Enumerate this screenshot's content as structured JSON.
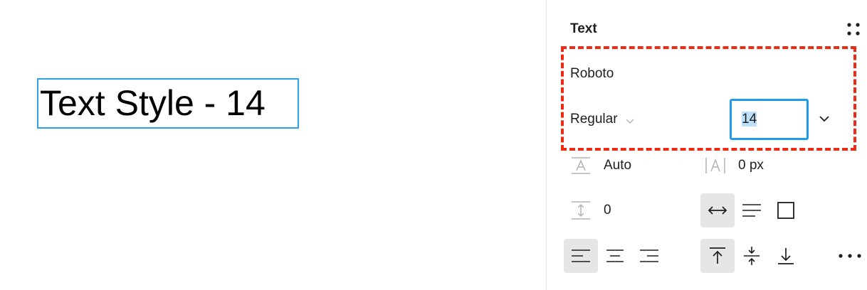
{
  "canvas": {
    "text_layer": "Text Style - 14"
  },
  "panel": {
    "title": "Text",
    "styles_icon": "grid-dots-icon",
    "font_family": "Roboto",
    "font_weight": "Regular",
    "font_size": "14",
    "line_height": {
      "icon": "line-height-icon",
      "value": "Auto"
    },
    "letter_spacing": {
      "icon": "letter-spacing-icon",
      "value": "0 px"
    },
    "paragraph_spacing": {
      "icon": "paragraph-spacing-icon",
      "value": "0"
    },
    "resizing": [
      {
        "icon": "auto-width-icon",
        "active": true
      },
      {
        "icon": "auto-height-icon",
        "active": false
      },
      {
        "icon": "fixed-size-icon",
        "active": false
      }
    ],
    "horizontal_align": [
      {
        "icon": "align-left-icon",
        "active": true
      },
      {
        "icon": "align-center-icon",
        "active": false
      },
      {
        "icon": "align-right-icon",
        "active": false
      }
    ],
    "vertical_align": [
      {
        "icon": "align-top-icon",
        "active": true
      },
      {
        "icon": "align-middle-icon",
        "active": false
      },
      {
        "icon": "align-bottom-icon",
        "active": false
      }
    ],
    "more_icon": "more-options-icon"
  },
  "colors": {
    "selection": "#2fa2e6",
    "highlight_dash": "#ee2a12",
    "input_focus": "#1e9bf0",
    "text_selection": "#bde0fb",
    "active_button": "#e6e6e6"
  }
}
